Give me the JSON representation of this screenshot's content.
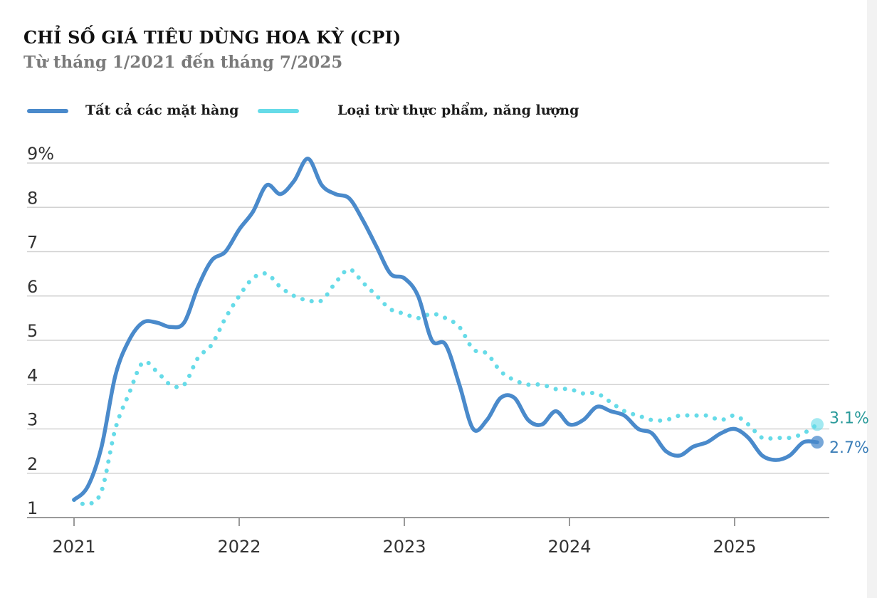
{
  "colors": {
    "headline": "#4a8acb",
    "core": "#66dbe8",
    "grid": "#d2d2d2",
    "axis": "#9a9a9a",
    "label_headline": "#3d7fb8",
    "label_core": "#2a9a9a"
  },
  "chart_data": {
    "type": "line",
    "title": "CHỈ SỐ GIÁ TIÊU DÙNG HOA KỲ (CPI)",
    "subtitle": "Từ tháng 1/2021 đến tháng 7/2025",
    "xlabel": "",
    "ylabel": "",
    "ylim": [
      1,
      9
    ],
    "y_ticks": [
      {
        "value": 9,
        "label": "9%"
      },
      {
        "value": 8,
        "label": "8"
      },
      {
        "value": 7,
        "label": "7"
      },
      {
        "value": 6,
        "label": "6"
      },
      {
        "value": 5,
        "label": "5"
      },
      {
        "value": 4,
        "label": "4"
      },
      {
        "value": 3,
        "label": "3"
      },
      {
        "value": 2,
        "label": "2"
      },
      {
        "value": 1,
        "label": "1"
      }
    ],
    "x_ticks": [
      "2021",
      "2022",
      "2023",
      "2024",
      "2025"
    ],
    "grid": true,
    "legend_position": "top",
    "x": [
      "2021-01",
      "2021-02",
      "2021-03",
      "2021-04",
      "2021-05",
      "2021-06",
      "2021-07",
      "2021-08",
      "2021-09",
      "2021-10",
      "2021-11",
      "2021-12",
      "2022-01",
      "2022-02",
      "2022-03",
      "2022-04",
      "2022-05",
      "2022-06",
      "2022-07",
      "2022-08",
      "2022-09",
      "2022-10",
      "2022-11",
      "2022-12",
      "2023-01",
      "2023-02",
      "2023-03",
      "2023-04",
      "2023-05",
      "2023-06",
      "2023-07",
      "2023-08",
      "2023-09",
      "2023-10",
      "2023-11",
      "2023-12",
      "2024-01",
      "2024-02",
      "2024-03",
      "2024-04",
      "2024-05",
      "2024-06",
      "2024-07",
      "2024-08",
      "2024-09",
      "2024-10",
      "2024-11",
      "2024-12",
      "2025-01",
      "2025-02",
      "2025-03",
      "2025-04",
      "2025-05",
      "2025-06",
      "2025-07"
    ],
    "series": [
      {
        "name": "Tất cả các mặt hàng",
        "style": "solid",
        "values": [
          1.4,
          1.7,
          2.6,
          4.2,
          5.0,
          5.4,
          5.4,
          5.3,
          5.4,
          6.2,
          6.8,
          7.0,
          7.5,
          7.9,
          8.5,
          8.3,
          8.6,
          9.1,
          8.5,
          8.3,
          8.2,
          7.7,
          7.1,
          6.5,
          6.4,
          6.0,
          5.0,
          4.9,
          4.0,
          3.0,
          3.2,
          3.7,
          3.7,
          3.2,
          3.1,
          3.4,
          3.1,
          3.2,
          3.5,
          3.4,
          3.3,
          3.0,
          2.9,
          2.5,
          2.4,
          2.6,
          2.7,
          2.9,
          3.0,
          2.8,
          2.4,
          2.3,
          2.4,
          2.7,
          2.7
        ],
        "end_label": "2.7%"
      },
      {
        "name": "Loại trừ thực phẩm, năng lượng",
        "style": "dotted",
        "values": [
          1.4,
          1.3,
          1.6,
          3.0,
          3.8,
          4.5,
          4.3,
          4.0,
          4.0,
          4.6,
          4.9,
          5.5,
          6.0,
          6.4,
          6.5,
          6.2,
          6.0,
          5.9,
          5.9,
          6.3,
          6.6,
          6.3,
          6.0,
          5.7,
          5.6,
          5.5,
          5.6,
          5.5,
          5.3,
          4.8,
          4.7,
          4.3,
          4.1,
          4.0,
          4.0,
          3.9,
          3.9,
          3.8,
          3.8,
          3.6,
          3.4,
          3.3,
          3.2,
          3.2,
          3.3,
          3.3,
          3.3,
          3.2,
          3.3,
          3.1,
          2.8,
          2.8,
          2.8,
          2.9,
          3.1
        ],
        "end_label": "3.1%"
      }
    ]
  }
}
